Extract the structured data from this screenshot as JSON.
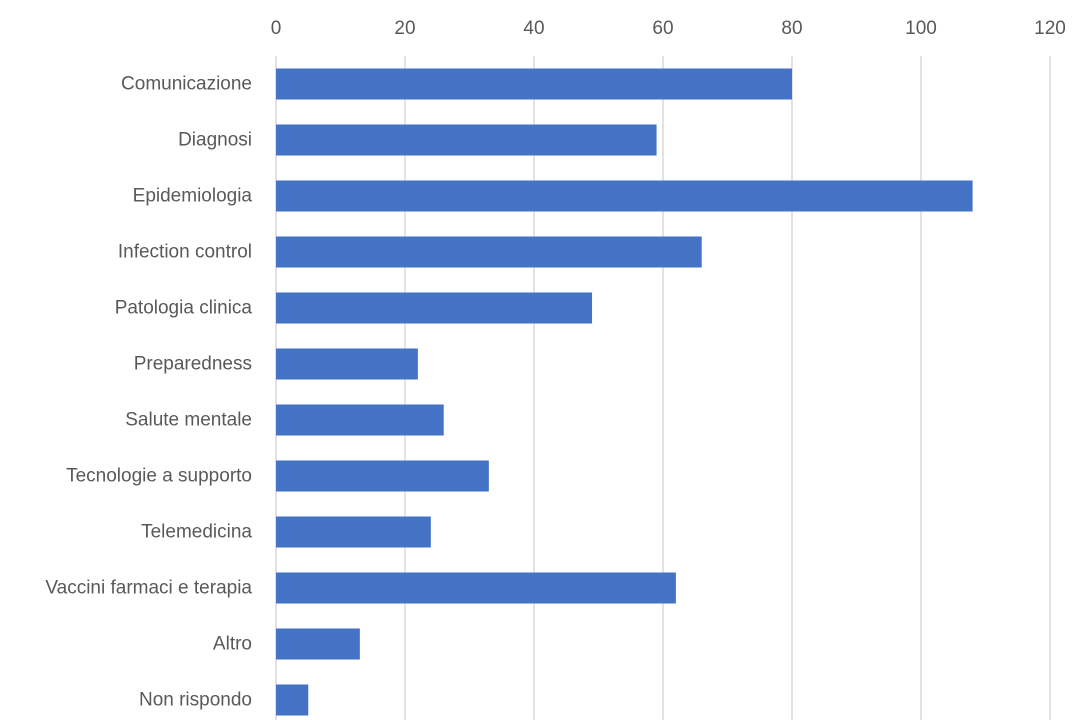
{
  "chart_data": {
    "type": "bar",
    "orientation": "horizontal",
    "title": "",
    "xlabel": "",
    "ylabel": "",
    "categories": [
      "Comunicazione",
      "Diagnosi",
      "Epidemiologia",
      "Infection control",
      "Patologia clinica",
      "Preparedness",
      "Salute mentale",
      "Tecnologie a supporto",
      "Telemedicina",
      "Vaccini farmaci e terapia",
      "Altro",
      "Non rispondo"
    ],
    "values": [
      80,
      59,
      108,
      66,
      49,
      22,
      26,
      33,
      24,
      62,
      13,
      5
    ],
    "xlim": [
      0,
      120
    ],
    "xticks": [
      "0",
      "20",
      "40",
      "60",
      "80",
      "100",
      "120"
    ],
    "axis_position": "top",
    "grid": true,
    "legend": "none",
    "colors": {
      "bar": "#4472c4",
      "grid": "#d9d9d9",
      "text": "#595959"
    }
  }
}
